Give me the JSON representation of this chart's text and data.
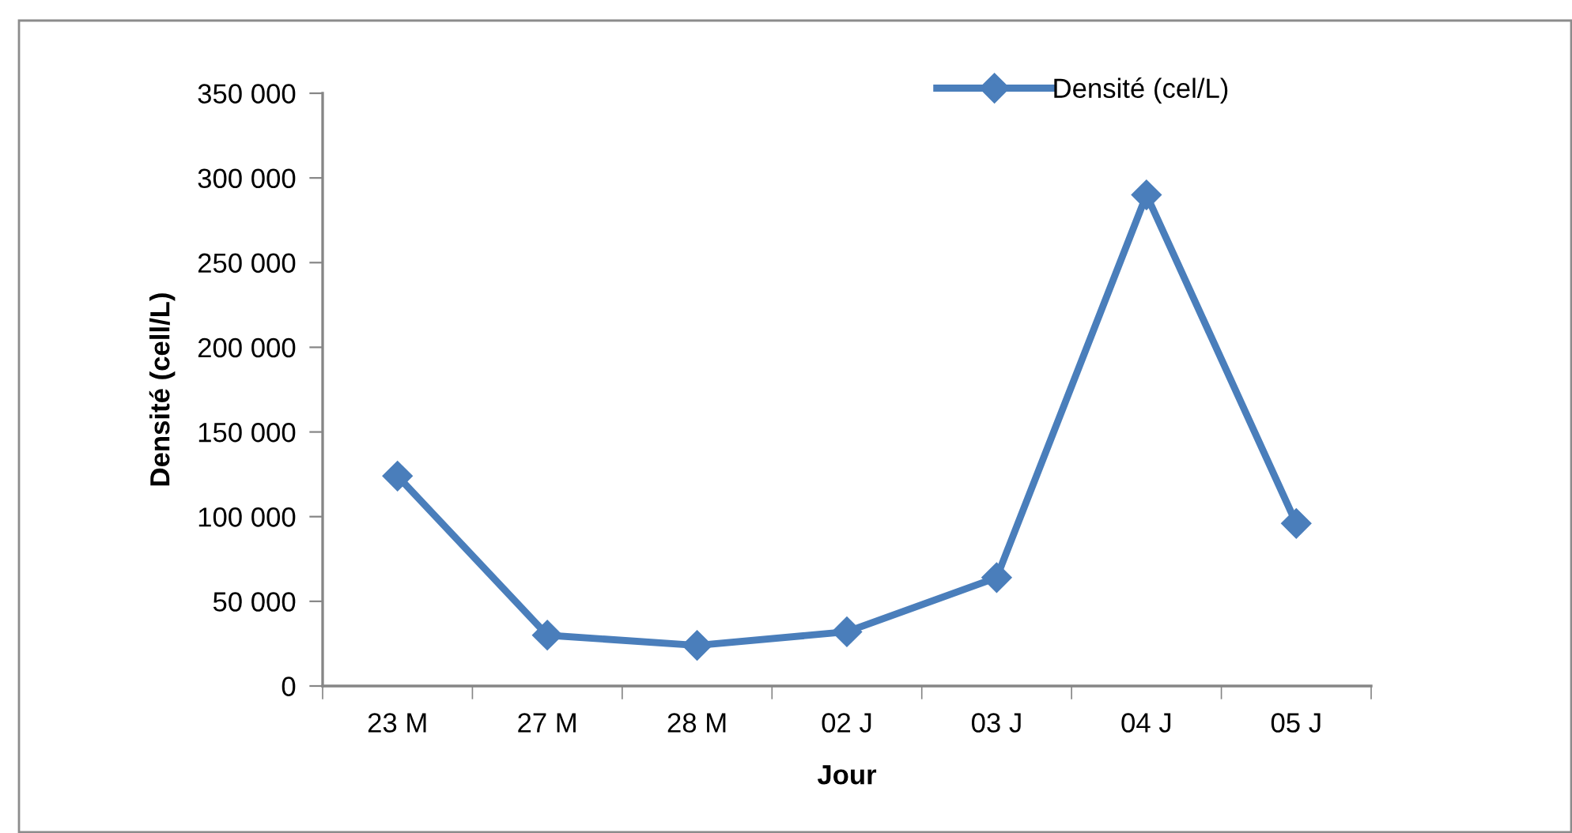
{
  "chart_data": {
    "type": "line",
    "xlabel": "Jour",
    "ylabel": "Densité (cell/L)",
    "categories": [
      "23 M",
      "27 M",
      "28 M",
      "02 J",
      "03 J",
      "04 J",
      "05 J"
    ],
    "series": [
      {
        "name": "Densité (cel/L)",
        "color": "#4a7ebb",
        "values": [
          124000,
          30000,
          24000,
          32000,
          64000,
          290000,
          96000
        ]
      }
    ],
    "ylim": [
      0,
      350000
    ],
    "yticks": [
      0,
      {
        "value": 50000,
        "label": "50 000"
      },
      {
        "value": 100000,
        "label": "100 000"
      },
      {
        "value": 150000,
        "label": "150 000"
      },
      {
        "value": 200000,
        "label": "200 000"
      },
      {
        "value": 250000,
        "label": "250 000"
      },
      {
        "value": 300000,
        "label": "300 000"
      },
      {
        "value": 350000,
        "label": "350 000"
      }
    ],
    "marker": "diamond",
    "line_style": "solid",
    "grid": false,
    "legend": "top right"
  }
}
